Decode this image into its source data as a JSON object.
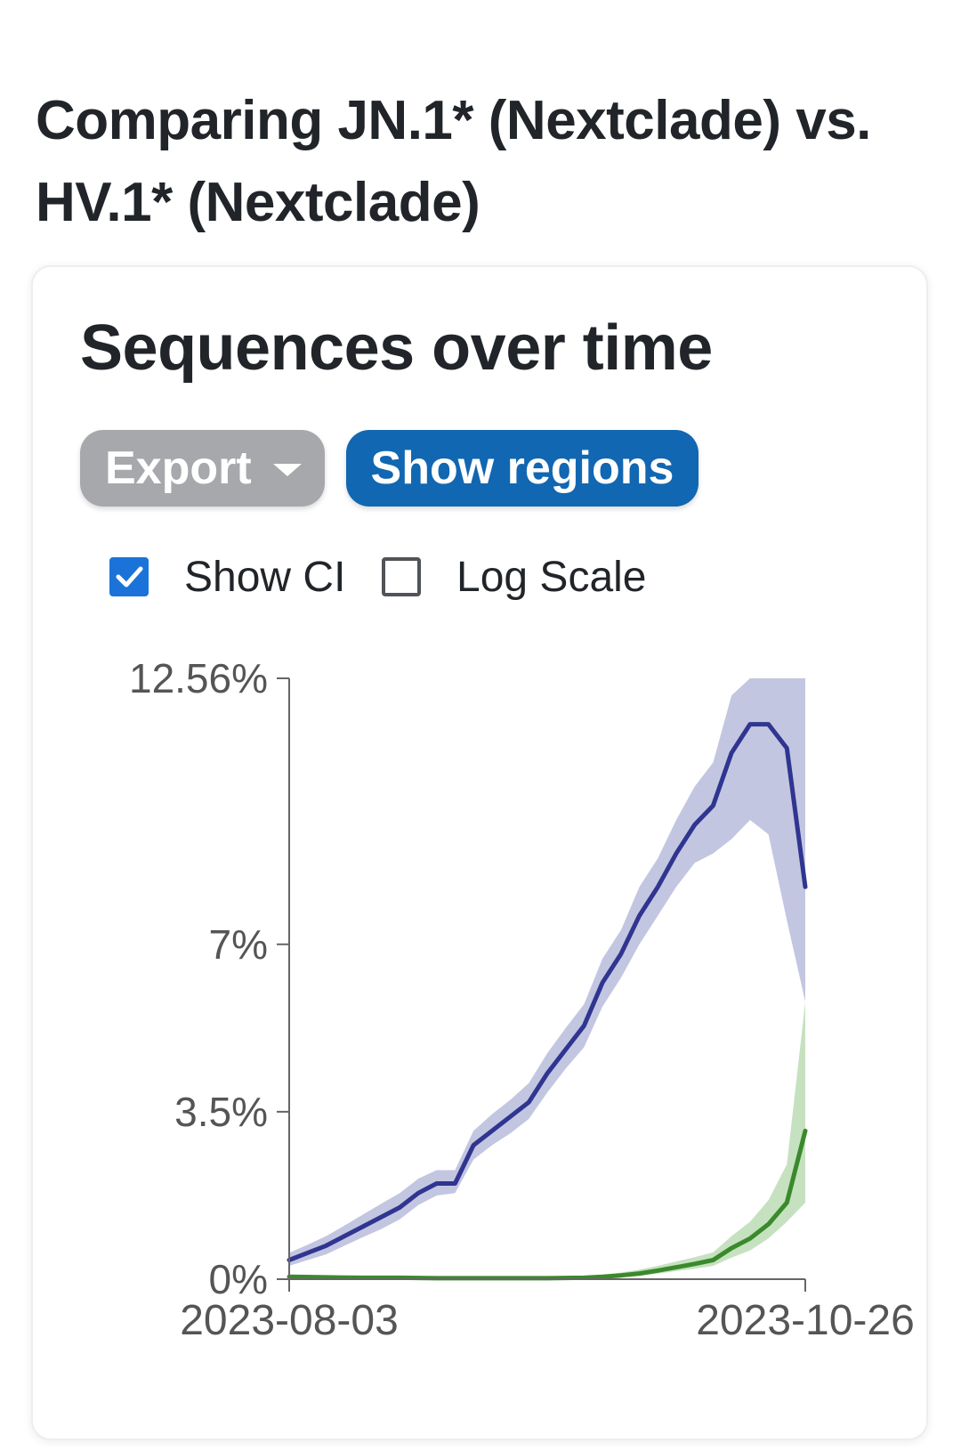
{
  "page": {
    "title": "Comparing JN.1* (Nextclade) vs. HV.1* (Nextclade)"
  },
  "card": {
    "title": "Sequences over time",
    "export_label": "Export",
    "regions_label": "Show regions",
    "show_ci": {
      "label": "Show CI",
      "checked": true
    },
    "log_scale": {
      "label": "Log Scale",
      "checked": false
    }
  },
  "colors": {
    "jn1_line": "#2f3590",
    "jn1_ci": "#c3c6e0",
    "hv1_line": "#3a8a2c",
    "hv1_ci": "#c6e1c0",
    "export_button": "#a6a8ab",
    "regions_button": "#1167b1",
    "checkbox_checked": "#1b73d9",
    "axis": "#666666"
  },
  "chart_data": {
    "type": "line",
    "ylim": [
      0,
      12.56
    ],
    "yticks": [
      "0%",
      "3.5%",
      "7%",
      "12.56%"
    ],
    "yticks_values": [
      0,
      3.5,
      7,
      12.56
    ],
    "xticks": [
      "2023-08-03",
      "2023-10-26"
    ],
    "x_range_days": [
      0,
      84
    ],
    "ci_shown": true,
    "series": [
      {
        "color_key": "jn1",
        "x": [
          0,
          3,
          6,
          9,
          12,
          15,
          18,
          21,
          24,
          27,
          30,
          33,
          36,
          39,
          42,
          45,
          48,
          51,
          54,
          57,
          60,
          63,
          66,
          69,
          72,
          75,
          78,
          81,
          84
        ],
        "values": [
          0.4,
          0.55,
          0.7,
          0.9,
          1.1,
          1.3,
          1.5,
          1.8,
          2.0,
          2.0,
          2.8,
          3.1,
          3.4,
          3.7,
          4.3,
          4.8,
          5.3,
          6.2,
          6.8,
          7.6,
          8.2,
          8.9,
          9.5,
          9.9,
          11.0,
          11.6,
          11.6,
          11.1,
          8.2
        ],
        "ci_lower": [
          0.28,
          0.4,
          0.52,
          0.7,
          0.88,
          1.05,
          1.25,
          1.55,
          1.75,
          1.8,
          2.5,
          2.8,
          3.05,
          3.35,
          3.9,
          4.4,
          4.85,
          5.7,
          6.3,
          7.0,
          7.6,
          8.2,
          8.7,
          8.9,
          9.2,
          9.6,
          9.3,
          7.5,
          5.8
        ],
        "ci_upper": [
          0.55,
          0.72,
          0.9,
          1.12,
          1.35,
          1.58,
          1.8,
          2.1,
          2.28,
          2.28,
          3.1,
          3.45,
          3.75,
          4.1,
          4.72,
          5.25,
          5.75,
          6.7,
          7.3,
          8.2,
          8.8,
          9.6,
          10.3,
          10.8,
          12.2,
          12.56,
          12.56,
          12.56,
          12.56
        ]
      },
      {
        "color_key": "hv1",
        "x": [
          0,
          6,
          12,
          18,
          24,
          30,
          36,
          42,
          48,
          51,
          54,
          57,
          60,
          63,
          66,
          69,
          72,
          75,
          78,
          81,
          84
        ],
        "values": [
          0.05,
          0.04,
          0.03,
          0.03,
          0.02,
          0.02,
          0.02,
          0.02,
          0.03,
          0.05,
          0.08,
          0.12,
          0.18,
          0.25,
          0.32,
          0.4,
          0.65,
          0.85,
          1.15,
          1.6,
          3.1
        ],
        "ci_lower": [
          0.02,
          0.02,
          0.01,
          0.01,
          0.01,
          0.01,
          0.01,
          0.01,
          0.01,
          0.02,
          0.04,
          0.07,
          0.12,
          0.17,
          0.22,
          0.28,
          0.45,
          0.6,
          0.85,
          1.2,
          1.6
        ],
        "ci_upper": [
          0.09,
          0.07,
          0.06,
          0.05,
          0.04,
          0.04,
          0.04,
          0.04,
          0.06,
          0.09,
          0.14,
          0.2,
          0.28,
          0.37,
          0.46,
          0.56,
          0.9,
          1.2,
          1.65,
          2.4,
          5.8
        ]
      }
    ]
  }
}
